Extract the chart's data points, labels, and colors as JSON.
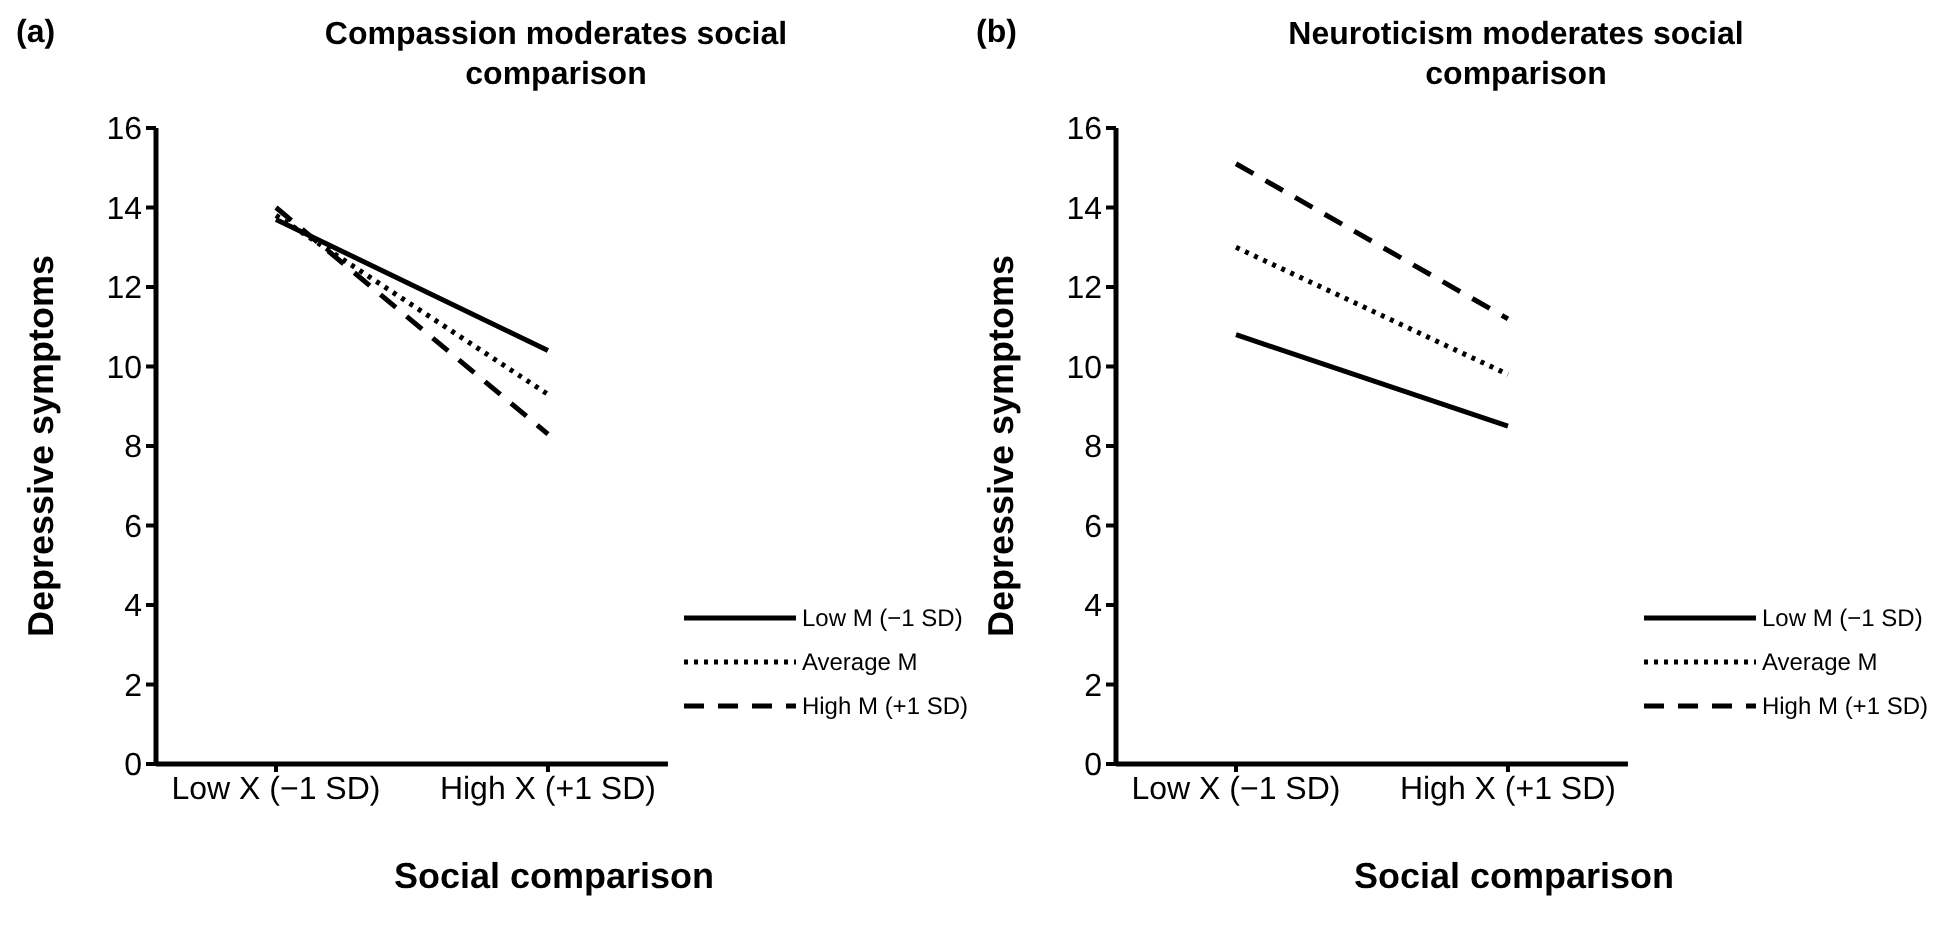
{
  "chart_data": [
    {
      "type": "line",
      "title": "Compassion moderates social comparison",
      "annotations": [
        "(a)"
      ],
      "xlabel": "Social comparison",
      "ylabel": "Depressive symptoms",
      "categories": [
        "Low X (−1 SD)",
        "High X (+1 SD)"
      ],
      "ylim": [
        0,
        16
      ],
      "yticks": [
        0,
        2,
        4,
        6,
        8,
        10,
        12,
        14,
        16
      ],
      "grid": false,
      "legend": "bottom right",
      "marker": "none",
      "series": [
        {
          "name": "Low M (−1 SD)",
          "color": "#000000",
          "line_style": "solid",
          "values": [
            13.7,
            10.4
          ]
        },
        {
          "name": "Average M",
          "color": "#000000",
          "line_style": "dotted",
          "values": [
            13.8,
            9.3
          ]
        },
        {
          "name": "High M (+1 SD)",
          "color": "#000000",
          "line_style": "dashed",
          "values": [
            14.0,
            8.3
          ]
        }
      ]
    },
    {
      "type": "line",
      "title": "Neuroticism moderates social comparison",
      "annotations": [
        "(b)"
      ],
      "xlabel": "Social comparison",
      "ylabel": "Depressive symptoms",
      "categories": [
        "Low X (−1 SD)",
        "High X (+1 SD)"
      ],
      "ylim": [
        0,
        16
      ],
      "yticks": [
        0,
        2,
        4,
        6,
        8,
        10,
        12,
        14,
        16
      ],
      "grid": false,
      "legend": "bottom right",
      "marker": "none",
      "series": [
        {
          "name": "Low M (−1 SD)",
          "color": "#000000",
          "line_style": "solid",
          "values": [
            10.8,
            8.5
          ]
        },
        {
          "name": "Average M",
          "color": "#000000",
          "line_style": "dotted",
          "values": [
            13.0,
            9.8
          ]
        },
        {
          "name": "High M (+1 SD)",
          "color": "#000000",
          "line_style": "dashed",
          "values": [
            15.1,
            11.2
          ]
        }
      ]
    }
  ]
}
